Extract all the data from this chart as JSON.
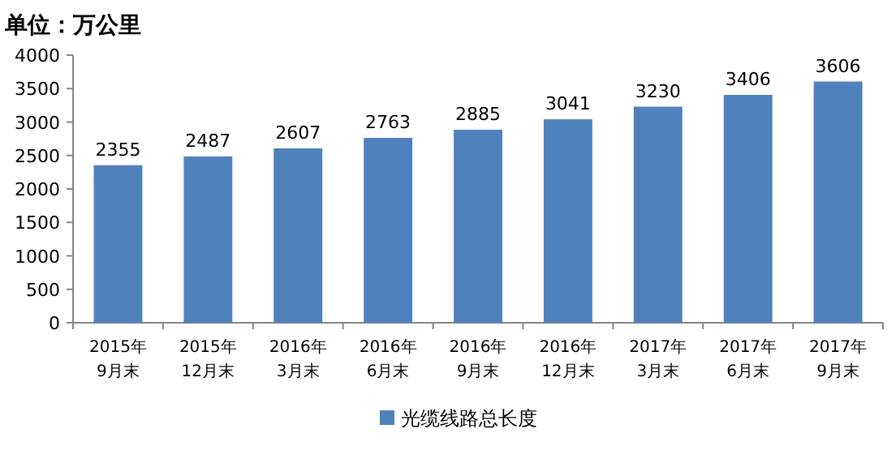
{
  "chart_data": {
    "type": "bar",
    "title": "单位：万公里",
    "categories": [
      "2015年\n9月末",
      "2015年\n12月末",
      "2016年\n3月末",
      "2016年\n6月末",
      "2016年\n9月末",
      "2016年\n12月末",
      "2017年\n3月末",
      "2017年\n6月末",
      "2017年\n9月末"
    ],
    "series": [
      {
        "name": "光缆线路总长度",
        "color": "#4f81bd",
        "values": [
          2355,
          2487,
          2607,
          2763,
          2885,
          3041,
          3230,
          3406,
          3606
        ]
      }
    ],
    "ylim": [
      0,
      4000
    ],
    "yticks": [
      0,
      500,
      1000,
      1500,
      2000,
      2500,
      3000,
      3500,
      4000
    ],
    "grid": false,
    "legend": "bottom",
    "data_labels": true
  }
}
